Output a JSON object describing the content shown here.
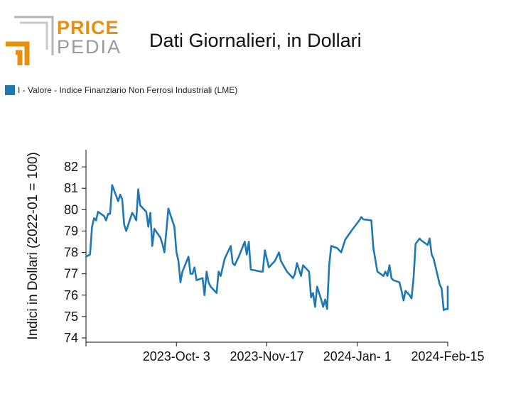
{
  "logo": {
    "top_word": "PRICE",
    "bottom_word": "PEDIA"
  },
  "header": {
    "title": "Dati Giornalieri, in Dollari"
  },
  "colors": {
    "series": "#1f77b4",
    "logo_orange": "#e8900e",
    "logo_gray": "#9a9a9a"
  },
  "chart_data": {
    "type": "line",
    "title": "Dati Giornalieri, in Dollari",
    "xlabel": "",
    "ylabel": "Indici in Dollari (2022-01 = 100)",
    "ylim": [
      73.8,
      82.8
    ],
    "xlim": [
      "2023-08-19",
      "2024-02-15"
    ],
    "y_ticks": [
      74,
      75,
      76,
      77,
      78,
      79,
      80,
      81,
      82
    ],
    "x_ticks": [
      {
        "date": "2023-10-03",
        "label": "2023-Oct- 3"
      },
      {
        "date": "2023-11-17",
        "label": "2023-Nov-17"
      },
      {
        "date": "2024-01-01",
        "label": "2024-Jan- 1"
      },
      {
        "date": "2024-02-15",
        "label": "2024-Feb-15"
      }
    ],
    "legend_position": "top-left",
    "grid": false,
    "series": [
      {
        "name": "I - Valore - Indice Finanziario Non Ferrosi Industriali (LME)",
        "color": "#1f77b4",
        "points": [
          [
            "2023-08-19",
            77.8
          ],
          [
            "2023-08-21",
            77.9
          ],
          [
            "2023-08-22",
            79.2
          ],
          [
            "2023-08-23",
            79.6
          ],
          [
            "2023-08-24",
            79.5
          ],
          [
            "2023-08-25",
            79.9
          ],
          [
            "2023-08-28",
            79.7
          ],
          [
            "2023-08-29",
            79.5
          ],
          [
            "2023-08-30",
            79.8
          ],
          [
            "2023-08-31",
            79.8
          ],
          [
            "2023-09-01",
            81.15
          ],
          [
            "2023-09-04",
            80.4
          ],
          [
            "2023-09-05",
            80.7
          ],
          [
            "2023-09-06",
            80.5
          ],
          [
            "2023-09-07",
            79.3
          ],
          [
            "2023-09-08",
            79.0
          ],
          [
            "2023-09-11",
            79.85
          ],
          [
            "2023-09-12",
            79.7
          ],
          [
            "2023-09-13",
            79.5
          ],
          [
            "2023-09-14",
            80.95
          ],
          [
            "2023-09-15",
            80.2
          ],
          [
            "2023-09-18",
            79.9
          ],
          [
            "2023-09-19",
            79.2
          ],
          [
            "2023-09-20",
            79.85
          ],
          [
            "2023-09-21",
            78.3
          ],
          [
            "2023-09-22",
            79.1
          ],
          [
            "2023-09-25",
            78.7
          ],
          [
            "2023-09-26",
            78.4
          ],
          [
            "2023-09-27",
            78.0
          ],
          [
            "2023-09-28",
            79.0
          ],
          [
            "2023-09-29",
            80.05
          ],
          [
            "2023-10-02",
            79.2
          ],
          [
            "2023-10-03",
            78.0
          ],
          [
            "2023-10-04",
            77.6
          ],
          [
            "2023-10-05",
            76.6
          ],
          [
            "2023-10-06",
            77.1
          ],
          [
            "2023-10-09",
            77.8
          ],
          [
            "2023-10-10",
            77.0
          ],
          [
            "2023-10-11",
            77.0
          ],
          [
            "2023-10-12",
            77.3
          ],
          [
            "2023-10-13",
            76.7
          ],
          [
            "2023-10-16",
            76.8
          ],
          [
            "2023-10-17",
            76.0
          ],
          [
            "2023-10-18",
            77.1
          ],
          [
            "2023-10-19",
            76.6
          ],
          [
            "2023-10-20",
            76.4
          ],
          [
            "2023-10-23",
            76.1
          ],
          [
            "2023-10-24",
            77.1
          ],
          [
            "2023-10-25",
            76.9
          ],
          [
            "2023-10-26",
            77.3
          ],
          [
            "2023-10-27",
            77.7
          ],
          [
            "2023-10-30",
            78.3
          ],
          [
            "2023-10-31",
            77.5
          ],
          [
            "2023-11-01",
            77.4
          ],
          [
            "2023-11-02",
            77.6
          ],
          [
            "2023-11-03",
            77.8
          ],
          [
            "2023-11-06",
            78.5
          ],
          [
            "2023-11-07",
            77.9
          ],
          [
            "2023-11-08",
            78.5
          ],
          [
            "2023-11-09",
            77.2
          ],
          [
            "2023-11-14",
            77.1
          ],
          [
            "2023-11-15",
            77.1
          ],
          [
            "2023-11-16",
            78.1
          ],
          [
            "2023-11-17",
            77.7
          ],
          [
            "2023-11-18",
            77.3
          ],
          [
            "2023-11-21",
            77.6
          ],
          [
            "2023-11-23",
            78.0
          ],
          [
            "2023-11-24",
            77.6
          ],
          [
            "2023-11-27",
            77.1
          ],
          [
            "2023-11-28",
            77.0
          ],
          [
            "2023-11-30",
            76.8
          ],
          [
            "2023-12-01",
            77.0
          ],
          [
            "2023-12-02",
            77.5
          ],
          [
            "2023-12-04",
            76.9
          ],
          [
            "2023-12-05",
            77.4
          ],
          [
            "2023-12-06",
            77.3
          ],
          [
            "2023-12-08",
            77.1
          ],
          [
            "2023-12-09",
            75.9
          ],
          [
            "2023-12-10",
            76.1
          ],
          [
            "2023-12-11",
            75.45
          ],
          [
            "2023-12-12",
            76.4
          ],
          [
            "2023-12-13",
            76.1
          ],
          [
            "2023-12-14",
            75.8
          ],
          [
            "2023-12-15",
            75.45
          ],
          [
            "2023-12-16",
            75.8
          ],
          [
            "2023-12-17",
            75.35
          ],
          [
            "2023-12-18",
            77.4
          ],
          [
            "2023-12-19",
            78.3
          ],
          [
            "2023-12-22",
            78.2
          ],
          [
            "2023-12-23",
            78.1
          ],
          [
            "2023-12-24",
            78.0
          ],
          [
            "2023-12-26",
            78.6
          ],
          [
            "2023-12-29",
            79.0
          ],
          [
            "2024-01-02",
            79.5
          ],
          [
            "2024-01-03",
            79.65
          ],
          [
            "2024-01-04",
            79.55
          ],
          [
            "2024-01-08",
            79.5
          ],
          [
            "2024-01-09",
            78.2
          ],
          [
            "2024-01-11",
            77.1
          ],
          [
            "2024-01-14",
            76.9
          ],
          [
            "2024-01-15",
            77.1
          ],
          [
            "2024-01-16",
            76.9
          ],
          [
            "2024-01-17",
            77.4
          ],
          [
            "2024-01-18",
            76.8
          ],
          [
            "2024-01-19",
            76.7
          ],
          [
            "2024-01-22",
            76.6
          ],
          [
            "2024-01-23",
            76.2
          ],
          [
            "2024-01-24",
            75.75
          ],
          [
            "2024-01-25",
            76.2
          ],
          [
            "2024-01-27",
            76.0
          ],
          [
            "2024-01-28",
            75.85
          ],
          [
            "2024-01-29",
            76.8
          ],
          [
            "2024-01-30",
            78.4
          ],
          [
            "2024-02-01",
            78.65
          ],
          [
            "2024-02-02",
            78.55
          ],
          [
            "2024-02-05",
            78.35
          ],
          [
            "2024-02-06",
            78.65
          ],
          [
            "2024-02-07",
            77.9
          ],
          [
            "2024-02-08",
            77.7
          ],
          [
            "2024-02-10",
            76.9
          ],
          [
            "2024-02-11",
            76.5
          ],
          [
            "2024-02-12",
            76.3
          ],
          [
            "2024-02-13",
            75.3
          ],
          [
            "2024-02-14",
            75.35
          ],
          [
            "2024-02-15",
            75.35
          ],
          [
            "2024-02-16",
            75.9
          ],
          [
            "2024-02-17",
            76.2
          ],
          [
            "2024-02-18",
            76.4
          ]
        ]
      }
    ]
  }
}
